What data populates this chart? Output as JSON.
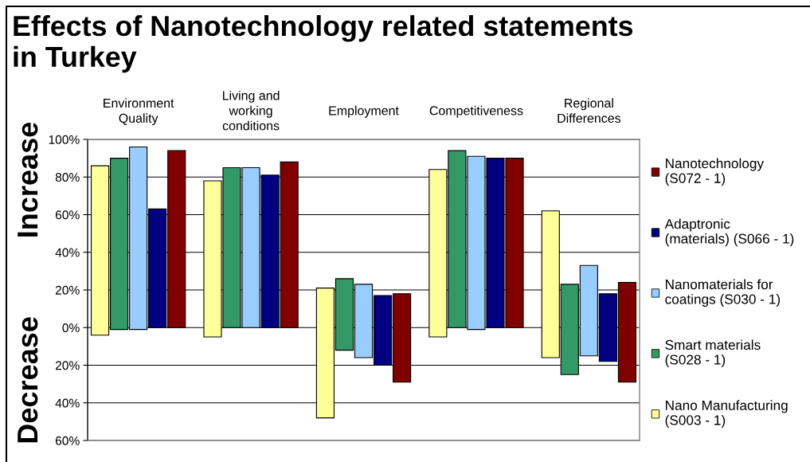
{
  "chart_data": {
    "type": "bar",
    "title": "Effects of Nanotechnology related statements in Turkey",
    "ylabel": "Increase",
    "annotations": [
      "Decrease"
    ],
    "categories": [
      "Environment Quality",
      "Living and working conditions",
      "Employment",
      "Competitiveness",
      "Regional Differences"
    ],
    "series": [
      {
        "name": "Nano Manufacturing (S003 - 1)",
        "color": "#ffff99",
        "base": [
          -4,
          -5,
          -48,
          -5,
          -16
        ],
        "values": [
          90,
          83,
          69,
          89,
          78
        ]
      },
      {
        "name": "Smart materials (S028 - 1)",
        "color": "#339966",
        "base": [
          -1,
          0,
          -12,
          0,
          -25
        ],
        "values": [
          91,
          85,
          38,
          94,
          48
        ]
      },
      {
        "name": "Nanomaterials for coatings (S030 - 1)",
        "color": "#99ccff",
        "base": [
          -1,
          0,
          -16,
          -1,
          -15
        ],
        "values": [
          97,
          85,
          39,
          92,
          48
        ]
      },
      {
        "name": "Adaptronic (materials) (S066 - 1)",
        "color": "#000080",
        "base": [
          0,
          0,
          -20,
          0,
          -18
        ],
        "values": [
          63,
          81,
          37,
          90,
          36
        ]
      },
      {
        "name": "Nanotechnology (S072 - 1)",
        "color": "#800000",
        "base": [
          0,
          0,
          -29,
          0,
          -29
        ],
        "values": [
          94,
          88,
          47,
          90,
          53
        ]
      }
    ],
    "ylim": [
      -60,
      100
    ],
    "yticks": [
      {
        "value": 100,
        "label": "100%"
      },
      {
        "value": 80,
        "label": "80%"
      },
      {
        "value": 60,
        "label": "60%"
      },
      {
        "value": 40,
        "label": "40%"
      },
      {
        "value": 20,
        "label": "20%"
      },
      {
        "value": 0,
        "label": "0%"
      },
      {
        "value": -20,
        "label": "20%"
      },
      {
        "value": -40,
        "label": "40%"
      },
      {
        "value": -60,
        "label": "60%"
      }
    ],
    "grid": "y",
    "legend": "right"
  }
}
